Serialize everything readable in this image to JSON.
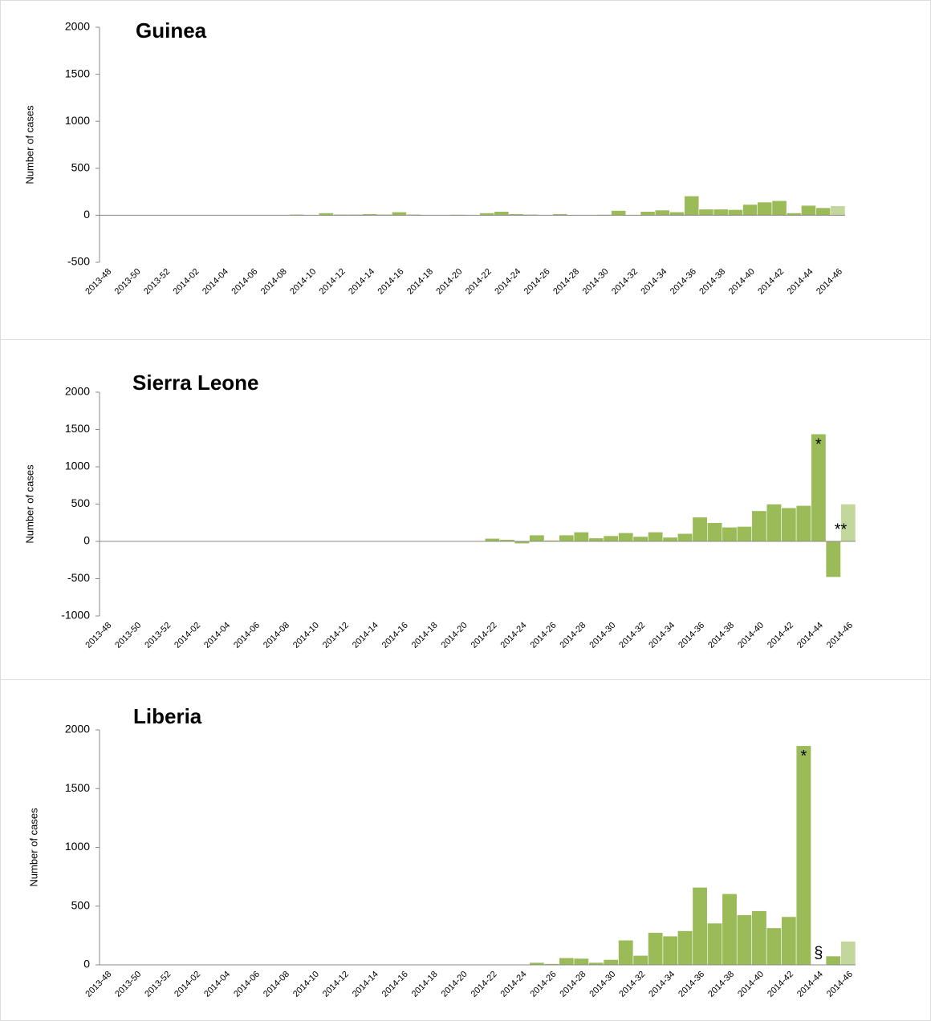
{
  "chart_data": [
    {
      "type": "bar",
      "title": "Guinea",
      "y_label": "Number of cases",
      "categories": [
        "2013-48",
        null,
        "2013-50",
        null,
        "2013-52",
        null,
        "2014-02",
        null,
        "2014-04",
        null,
        "2014-06",
        null,
        "2014-08",
        null,
        "2014-10",
        null,
        "2014-12",
        null,
        "2014-14",
        null,
        "2014-16",
        null,
        "2014-18",
        null,
        "2014-20",
        null,
        "2014-22",
        null,
        "2014-24",
        null,
        "2014-26",
        null,
        "2014-28",
        null,
        "2014-30",
        null,
        "2014-32",
        null,
        "2014-34",
        null,
        "2014-36",
        null,
        "2014-38",
        null,
        "2014-40",
        null,
        "2014-42",
        null,
        "2014-44",
        null,
        "2014-46"
      ],
      "values": [
        0,
        0,
        0,
        0,
        0,
        0,
        0,
        0,
        0,
        0,
        0,
        0,
        0,
        10,
        0,
        25,
        10,
        10,
        15,
        10,
        35,
        10,
        0,
        0,
        8,
        0,
        25,
        40,
        15,
        10,
        0,
        15,
        0,
        0,
        8,
        50,
        0,
        40,
        55,
        35,
        205,
        65,
        65,
        60,
        115,
        140,
        155,
        25,
        105,
        80,
        100
      ],
      "colors": [
        "#9bbb59",
        "#9bbb59",
        "#9bbb59",
        "#9bbb59",
        "#9bbb59",
        "#9bbb59",
        "#9bbb59",
        "#9bbb59",
        "#9bbb59",
        "#9bbb59",
        "#9bbb59",
        "#9bbb59",
        "#9bbb59",
        "#9bbb59",
        "#9bbb59",
        "#9bbb59",
        "#9bbb59",
        "#9bbb59",
        "#9bbb59",
        "#9bbb59",
        "#9bbb59",
        "#9bbb59",
        "#9bbb59",
        "#9bbb59",
        "#9bbb59",
        "#9bbb59",
        "#9bbb59",
        "#9bbb59",
        "#9bbb59",
        "#9bbb59",
        "#9bbb59",
        "#9bbb59",
        "#9bbb59",
        "#9bbb59",
        "#9bbb59",
        "#9bbb59",
        "#9bbb59",
        "#9bbb59",
        "#9bbb59",
        "#9bbb59",
        "#9bbb59",
        "#9bbb59",
        "#9bbb59",
        "#9bbb59",
        "#9bbb59",
        "#9bbb59",
        "#9bbb59",
        "#9bbb59",
        "#9bbb59",
        "#9bbb59",
        "#c3d69b"
      ],
      "ylim": [
        -500,
        2000
      ],
      "yticks": [
        -500,
        0,
        500,
        1000,
        1500,
        2000
      ],
      "grid": false,
      "annotations": []
    },
    {
      "type": "bar",
      "title": "Sierra Leone",
      "y_label": "Number of cases",
      "categories": [
        "2013-48",
        null,
        "2013-50",
        null,
        "2013-52",
        null,
        "2014-02",
        null,
        "2014-04",
        null,
        "2014-06",
        null,
        "2014-08",
        null,
        "2014-10",
        null,
        "2014-12",
        null,
        "2014-14",
        null,
        "2014-16",
        null,
        "2014-18",
        null,
        "2014-20",
        null,
        "2014-22",
        null,
        "2014-24",
        null,
        "2014-26",
        null,
        "2014-28",
        null,
        "2014-30",
        null,
        "2014-32",
        null,
        "2014-34",
        null,
        "2014-36",
        null,
        "2014-38",
        null,
        "2014-40",
        null,
        "2014-42",
        null,
        "2014-44",
        null,
        "2014-46"
      ],
      "values": [
        0,
        0,
        0,
        0,
        0,
        0,
        0,
        0,
        0,
        0,
        0,
        0,
        0,
        0,
        0,
        0,
        0,
        0,
        0,
        0,
        0,
        0,
        0,
        0,
        0,
        0,
        40,
        25,
        -30,
        85,
        15,
        85,
        125,
        45,
        75,
        115,
        65,
        125,
        55,
        105,
        325,
        250,
        190,
        200,
        410,
        500,
        450,
        480,
        1440,
        -480,
        500
      ],
      "colors": [
        "#9bbb59",
        "#9bbb59",
        "#9bbb59",
        "#9bbb59",
        "#9bbb59",
        "#9bbb59",
        "#9bbb59",
        "#9bbb59",
        "#9bbb59",
        "#9bbb59",
        "#9bbb59",
        "#9bbb59",
        "#9bbb59",
        "#9bbb59",
        "#9bbb59",
        "#9bbb59",
        "#9bbb59",
        "#9bbb59",
        "#9bbb59",
        "#9bbb59",
        "#9bbb59",
        "#9bbb59",
        "#9bbb59",
        "#9bbb59",
        "#9bbb59",
        "#9bbb59",
        "#9bbb59",
        "#9bbb59",
        "#9bbb59",
        "#9bbb59",
        "#9bbb59",
        "#9bbb59",
        "#9bbb59",
        "#9bbb59",
        "#9bbb59",
        "#9bbb59",
        "#9bbb59",
        "#9bbb59",
        "#9bbb59",
        "#9bbb59",
        "#9bbb59",
        "#9bbb59",
        "#9bbb59",
        "#9bbb59",
        "#9bbb59",
        "#9bbb59",
        "#9bbb59",
        "#9bbb59",
        "#9bbb59",
        "#9bbb59",
        "#c3d69b"
      ],
      "ylim": [
        -1000,
        2000
      ],
      "yticks": [
        -1000,
        -500,
        0,
        500,
        1000,
        1500,
        2000
      ],
      "grid": false,
      "annotations": [
        {
          "text": "*",
          "index": 48
        },
        {
          "text": "**",
          "index": 49
        }
      ]
    },
    {
      "type": "bar",
      "title": "Liberia",
      "y_label": "Number of cases",
      "categories": [
        "2013-48",
        null,
        "2013-50",
        null,
        "2013-52",
        null,
        "2014-02",
        null,
        "2014-04",
        null,
        "2014-06",
        null,
        "2014-08",
        null,
        "2014-10",
        null,
        "2014-12",
        null,
        "2014-14",
        null,
        "2014-16",
        null,
        "2014-18",
        null,
        "2014-20",
        null,
        "2014-22",
        null,
        "2014-24",
        null,
        "2014-26",
        null,
        "2014-28",
        null,
        "2014-30",
        null,
        "2014-32",
        null,
        "2014-34",
        null,
        "2014-36",
        null,
        "2014-38",
        null,
        "2014-40",
        null,
        "2014-42",
        null,
        "2014-44",
        null,
        "2014-46"
      ],
      "values": [
        0,
        0,
        0,
        0,
        0,
        0,
        0,
        0,
        0,
        0,
        0,
        0,
        0,
        0,
        0,
        0,
        0,
        0,
        0,
        0,
        0,
        0,
        0,
        0,
        0,
        0,
        0,
        0,
        0,
        20,
        10,
        60,
        55,
        20,
        45,
        210,
        80,
        275,
        245,
        290,
        660,
        355,
        605,
        425,
        460,
        315,
        410,
        1865,
        0,
        75,
        200
      ],
      "colors": [
        "#9bbb59",
        "#9bbb59",
        "#9bbb59",
        "#9bbb59",
        "#9bbb59",
        "#9bbb59",
        "#9bbb59",
        "#9bbb59",
        "#9bbb59",
        "#9bbb59",
        "#9bbb59",
        "#9bbb59",
        "#9bbb59",
        "#9bbb59",
        "#9bbb59",
        "#9bbb59",
        "#9bbb59",
        "#9bbb59",
        "#9bbb59",
        "#9bbb59",
        "#9bbb59",
        "#9bbb59",
        "#9bbb59",
        "#9bbb59",
        "#9bbb59",
        "#9bbb59",
        "#9bbb59",
        "#9bbb59",
        "#9bbb59",
        "#9bbb59",
        "#9bbb59",
        "#9bbb59",
        "#9bbb59",
        "#9bbb59",
        "#9bbb59",
        "#9bbb59",
        "#9bbb59",
        "#9bbb59",
        "#9bbb59",
        "#9bbb59",
        "#9bbb59",
        "#9bbb59",
        "#9bbb59",
        "#9bbb59",
        "#9bbb59",
        "#9bbb59",
        "#9bbb59",
        "#9bbb59",
        "#9bbb59",
        "#9bbb59",
        "#c3d69b"
      ],
      "ylim": [
        0,
        2000
      ],
      "yticks": [
        0,
        500,
        1000,
        1500,
        2000
      ],
      "grid": false,
      "annotations": [
        {
          "text": "*",
          "index": 47
        },
        {
          "text": "§",
          "index": 48
        }
      ]
    }
  ]
}
